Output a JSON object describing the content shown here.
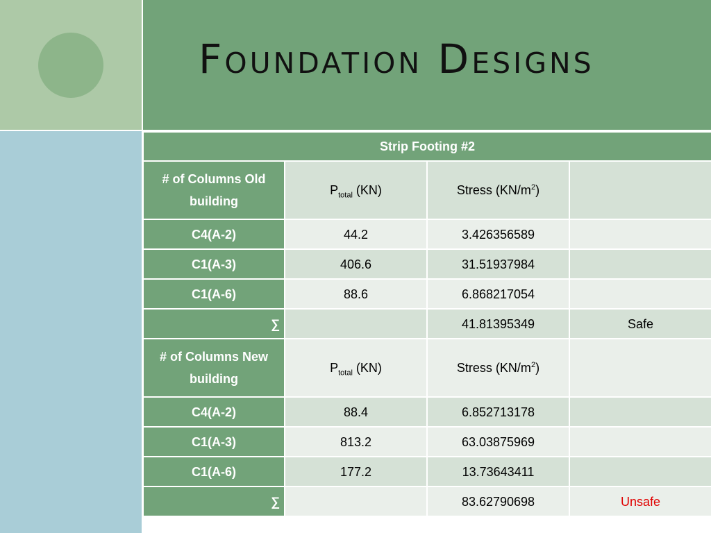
{
  "slide": {
    "title": "Foundation Designs"
  },
  "table": {
    "caption": "Strip Footing #2",
    "sections": [
      {
        "header": {
          "label": "# of Columns Old building",
          "p_main": "P",
          "p_sub": "total",
          "p_unit": " (KN)",
          "stress_main": "Stress (KN/m",
          "stress_sup": "2",
          "stress_end": ")",
          "status": ""
        },
        "rows": [
          {
            "column": "C4(A-2)",
            "p": "44.2",
            "stress": "3.426356589",
            "status": ""
          },
          {
            "column": "C1(A-3)",
            "p": "406.6",
            "stress": "31.51937984",
            "status": ""
          },
          {
            "column": "C1(A-6)",
            "p": "88.6",
            "stress": "6.868217054",
            "status": ""
          }
        ],
        "sum": {
          "symbol": "∑",
          "p": "",
          "stress": "41.81395349",
          "status": "Safe"
        }
      },
      {
        "header": {
          "label": "# of Columns New building",
          "p_main": "P",
          "p_sub": "total",
          "p_unit": " (KN)",
          "stress_main": "Stress (KN/m",
          "stress_sup": "2",
          "stress_end": ")",
          "status": ""
        },
        "rows": [
          {
            "column": "C4(A-2)",
            "p": "88.4",
            "stress": "6.852713178",
            "status": ""
          },
          {
            "column": "C1(A-3)",
            "p": "813.2",
            "stress": "63.03875969",
            "status": ""
          },
          {
            "column": "C1(A-6)",
            "p": "177.2",
            "stress": "13.73643411",
            "status": ""
          }
        ],
        "sum": {
          "symbol": "∑",
          "p": "",
          "stress": "83.62790698",
          "status": "Unsafe"
        }
      }
    ],
    "colors": {
      "header_green": "#72a379",
      "row_dark": "#d5e1d6",
      "row_light": "#eaefea",
      "unsafe_red": "#e00000"
    }
  }
}
